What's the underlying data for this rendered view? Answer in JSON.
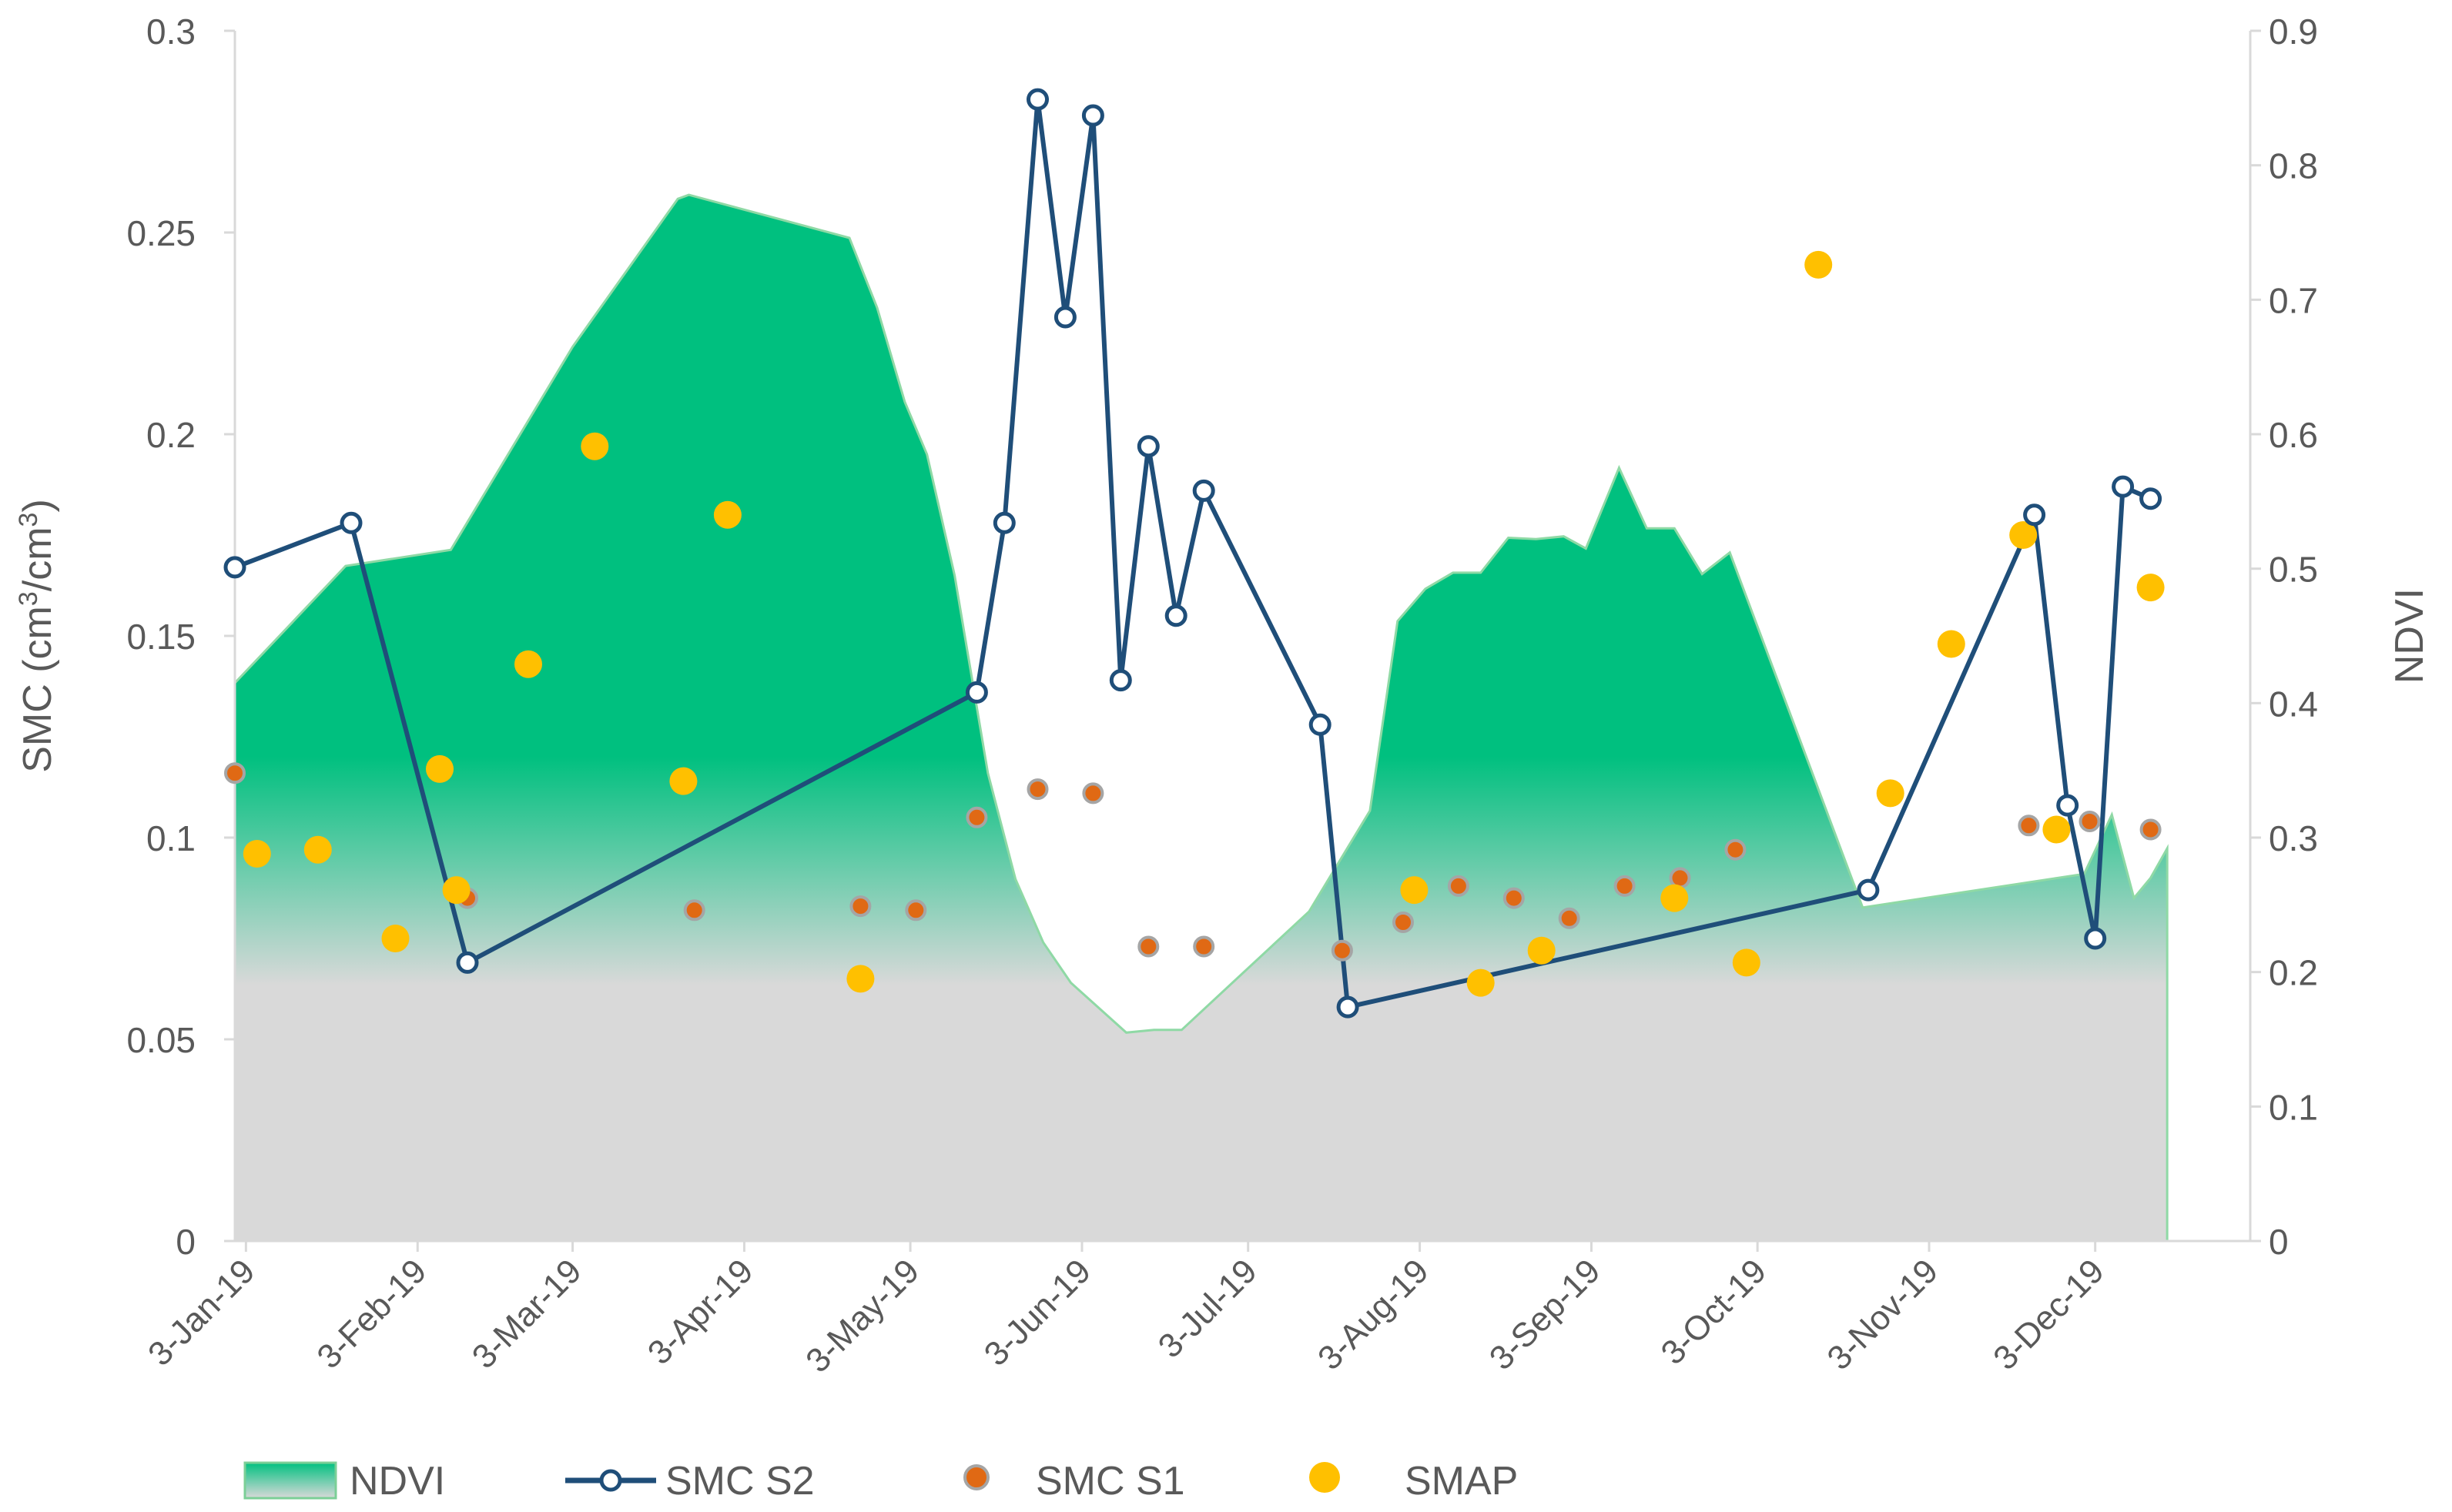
{
  "chart_data": {
    "type": "line",
    "title": "",
    "ylabel_left_base": "SMC (cm",
    "ylabel_left_sup1": "3",
    "ylabel_left_mid": "/cm",
    "ylabel_left_sup2": "3",
    "ylabel_left_end": ")",
    "ylabel_right": "NDVI",
    "ylim_left": [
      0,
      0.3
    ],
    "ylim_right": [
      0,
      0.9
    ],
    "yticks_left": [
      "0",
      "0.05",
      "0.1",
      "0.15",
      "0.2",
      "0.25",
      "0.3"
    ],
    "yticks_right": [
      "0",
      "0.1",
      "0.2",
      "0.3",
      "0.4",
      "0.5",
      "0.6",
      "0.7",
      "0.8",
      "0.9"
    ],
    "x_range_days": [
      1,
      365
    ],
    "x_ticks": [
      {
        "label": "3-Jan-19",
        "day": 3
      },
      {
        "label": "3-Feb-19",
        "day": 34
      },
      {
        "label": "3-Mar-19",
        "day": 62
      },
      {
        "label": "3-Apr-19",
        "day": 93
      },
      {
        "label": "3-May-19",
        "day": 123
      },
      {
        "label": "3-Jun-19",
        "day": 154
      },
      {
        "label": "3-Jul-19",
        "day": 184
      },
      {
        "label": "3-Aug-19",
        "day": 215
      },
      {
        "label": "3-Sep-19",
        "day": 246
      },
      {
        "label": "3-Oct-19",
        "day": 276
      },
      {
        "label": "3-Nov-19",
        "day": 307
      },
      {
        "label": "3-Dec-19",
        "day": 337
      }
    ],
    "series": [
      {
        "name": "NDVI",
        "type": "area",
        "axis": "right",
        "top_color": "#00c07f",
        "bottom_color": "#d9d9d9",
        "points": [
          [
            1,
            0.415
          ],
          [
            21,
            0.502
          ],
          [
            40,
            0.514
          ],
          [
            62,
            0.665
          ],
          [
            81,
            0.775
          ],
          [
            83,
            0.778
          ],
          [
            112,
            0.746
          ],
          [
            117,
            0.694
          ],
          [
            122,
            0.624
          ],
          [
            126,
            0.585
          ],
          [
            131,
            0.495
          ],
          [
            137,
            0.348
          ],
          [
            142,
            0.269
          ],
          [
            147,
            0.222
          ],
          [
            152,
            0.192
          ],
          [
            162,
            0.155
          ],
          [
            167,
            0.157
          ],
          [
            172,
            0.157
          ],
          [
            195,
            0.245
          ],
          [
            206,
            0.32
          ],
          [
            211,
            0.461
          ],
          [
            216,
            0.485
          ],
          [
            221,
            0.497
          ],
          [
            226,
            0.497
          ],
          [
            231,
            0.523
          ],
          [
            236,
            0.522
          ],
          [
            241,
            0.524
          ],
          [
            245,
            0.515
          ],
          [
            251,
            0.575
          ],
          [
            256,
            0.53
          ],
          [
            261,
            0.53
          ],
          [
            266,
            0.496
          ],
          [
            271,
            0.512
          ],
          [
            295,
            0.248
          ],
          [
            335,
            0.273
          ],
          [
            340,
            0.317
          ],
          [
            344,
            0.255
          ],
          [
            347,
            0.27
          ],
          [
            350,
            0.292
          ]
        ]
      },
      {
        "name": "SMC S2",
        "type": "line",
        "axis": "left",
        "color": "#1f4e79",
        "points": [
          [
            1,
            0.167
          ],
          [
            22,
            0.178
          ],
          [
            43,
            0.069
          ],
          [
            135,
            0.136
          ],
          [
            140,
            0.178
          ],
          [
            146,
            0.283
          ],
          [
            151,
            0.229
          ],
          [
            156,
            0.279
          ],
          [
            161,
            0.139
          ],
          [
            166,
            0.197
          ],
          [
            171,
            0.155
          ],
          [
            176,
            0.186
          ],
          [
            197,
            0.128
          ],
          [
            202,
            0.058
          ],
          [
            296,
            0.087
          ],
          [
            326,
            0.18
          ],
          [
            332,
            0.108
          ],
          [
            337,
            0.075
          ],
          [
            342,
            0.187
          ],
          [
            347,
            0.184
          ]
        ]
      },
      {
        "name": "SMC S1",
        "type": "scatter",
        "axis": "left",
        "color": "#e06914",
        "edge": "#a5a5a5",
        "points": [
          [
            1,
            0.116
          ],
          [
            43,
            0.085
          ],
          [
            84,
            0.082
          ],
          [
            114,
            0.083
          ],
          [
            124,
            0.082
          ],
          [
            135,
            0.105
          ],
          [
            146,
            0.112
          ],
          [
            156,
            0.111
          ],
          [
            166,
            0.073
          ],
          [
            176,
            0.073
          ],
          [
            201,
            0.072
          ],
          [
            212,
            0.079
          ],
          [
            222,
            0.088
          ],
          [
            232,
            0.085
          ],
          [
            242,
            0.08
          ],
          [
            252,
            0.088
          ],
          [
            262,
            0.09
          ],
          [
            272,
            0.097
          ],
          [
            325,
            0.103
          ],
          [
            336,
            0.104
          ],
          [
            347,
            0.102
          ]
        ]
      },
      {
        "name": "SMAP",
        "type": "scatter",
        "axis": "left",
        "color": "#ffc000",
        "points": [
          [
            5,
            0.096
          ],
          [
            16,
            0.097
          ],
          [
            30,
            0.075
          ],
          [
            38,
            0.117
          ],
          [
            41,
            0.087
          ],
          [
            54,
            0.143
          ],
          [
            66,
            0.197
          ],
          [
            82,
            0.114
          ],
          [
            90,
            0.18
          ],
          [
            114,
            0.065
          ],
          [
            214,
            0.087
          ],
          [
            226,
            0.064
          ],
          [
            237,
            0.072
          ],
          [
            261,
            0.085
          ],
          [
            274,
            0.069
          ],
          [
            287,
            0.242
          ],
          [
            300,
            0.111
          ],
          [
            311,
            0.148
          ],
          [
            324,
            0.175
          ],
          [
            330,
            0.102
          ],
          [
            347,
            0.162
          ]
        ]
      }
    ],
    "legend": {
      "placement": "bottom",
      "entries": [
        "NDVI",
        "SMC S2",
        "SMC S1",
        "SMAP"
      ]
    }
  }
}
